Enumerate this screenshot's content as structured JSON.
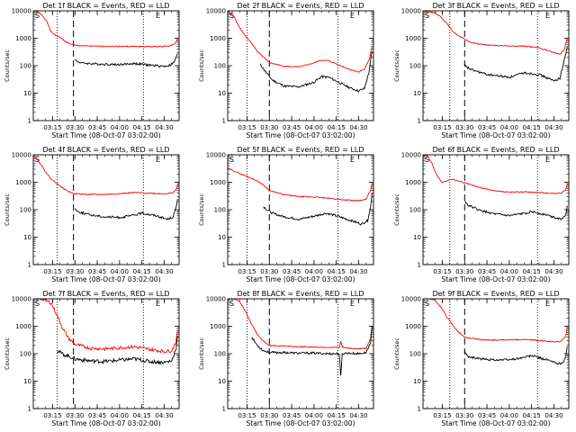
{
  "figure": {
    "xlabel": "Start Time (08-Oct-07 03:02:00)",
    "ylabel": "Counts/sec",
    "colors": {
      "events": "#000000",
      "lld": "#ff0000",
      "background": "#ffffff"
    }
  },
  "chart_data": [
    {
      "type": "line",
      "title": "Det 1f BLACK = Events, RED = LLD",
      "corner_labels": [
        "S",
        "E"
      ],
      "xlabel": "Start Time (08-Oct-07 03:02:00)",
      "ylabel": "Counts/sec",
      "yscale": "log",
      "ylim": [
        1,
        10000
      ],
      "yticks": [
        1,
        10,
        100,
        1000,
        10000
      ],
      "xlim": [
        "03:02",
        "04:40"
      ],
      "xticks": [
        "03:15",
        "03:30",
        "03:45",
        "04:00",
        "04:15",
        "04:30"
      ],
      "markers": {
        "dotted": [
          "03:18",
          "04:16"
        ],
        "dashed": [
          "03:29"
        ]
      },
      "series": [
        {
          "key": "lld",
          "x": [
            "03:02",
            "03:05",
            "03:08",
            "03:11",
            "03:14",
            "03:17",
            "03:20",
            "03:23",
            "03:26",
            "03:29",
            "03:35",
            "03:45",
            "04:00",
            "04:15",
            "04:25",
            "04:33",
            "04:36",
            "04:38",
            "04:39"
          ],
          "values": [
            10000,
            9000,
            7000,
            4200,
            1700,
            1300,
            1050,
            800,
            650,
            560,
            530,
            510,
            510,
            500,
            500,
            520,
            580,
            700,
            1000
          ]
        },
        {
          "key": "events",
          "x": [
            "03:30",
            "03:31",
            "03:35",
            "03:45",
            "04:00",
            "04:10",
            "04:20",
            "04:30",
            "04:34",
            "04:37",
            "04:38",
            "04:39"
          ],
          "values": [
            180,
            145,
            125,
            115,
            110,
            120,
            105,
            95,
            105,
            140,
            210,
            280
          ]
        }
      ]
    },
    {
      "type": "line",
      "title": "Det 2f BLACK = Events, RED = LLD",
      "corner_labels": [
        "S",
        "E"
      ],
      "xlabel": "Start Time (08-Oct-07 03:02:00)",
      "ylabel": "Counts/sec",
      "yscale": "log",
      "ylim": [
        1,
        10000
      ],
      "yticks": [
        1,
        10,
        100,
        1000,
        10000
      ],
      "xlim": [
        "03:02",
        "04:40"
      ],
      "xticks": [
        "03:15",
        "03:30",
        "03:45",
        "04:00",
        "04:15",
        "04:30"
      ],
      "markers": {
        "dotted": [
          "03:15",
          "04:16"
        ],
        "dashed": [
          "03:30"
        ]
      },
      "series": [
        {
          "key": "lld",
          "x": [
            "03:02",
            "03:06",
            "03:10",
            "03:14",
            "03:18",
            "03:22",
            "03:26",
            "03:30",
            "03:40",
            "03:50",
            "04:00",
            "04:05",
            "04:10",
            "04:20",
            "04:25",
            "04:30",
            "04:34",
            "04:37",
            "04:39"
          ],
          "values": [
            10000,
            6500,
            2500,
            1200,
            650,
            330,
            210,
            130,
            95,
            90,
            125,
            160,
            150,
            90,
            70,
            60,
            75,
            160,
            500
          ]
        },
        {
          "key": "events",
          "x": [
            "03:24",
            "03:28",
            "03:32",
            "03:40",
            "03:50",
            "04:00",
            "04:05",
            "04:10",
            "04:20",
            "04:25",
            "04:30",
            "04:34",
            "04:37",
            "04:39"
          ],
          "values": [
            110,
            55,
            30,
            18,
            17,
            25,
            40,
            38,
            20,
            15,
            12,
            15,
            60,
            330
          ]
        }
      ]
    },
    {
      "type": "line",
      "title": "Det 3f BLACK = Events, RED = LLD",
      "corner_labels": [
        "S",
        "E"
      ],
      "xlabel": "Start Time (08-Oct-07 03:02:00)",
      "ylabel": "Counts/sec",
      "yscale": "log",
      "ylim": [
        1,
        10000
      ],
      "yticks": [
        1,
        10,
        100,
        1000,
        10000
      ],
      "xlim": [
        "03:02",
        "04:40"
      ],
      "xticks": [
        "03:15",
        "03:30",
        "03:45",
        "04:00",
        "04:15",
        "04:30"
      ],
      "markers": {
        "dotted": [
          "03:20",
          "04:19"
        ],
        "dashed": [
          "03:30"
        ]
      },
      "series": [
        {
          "key": "lld",
          "x": [
            "03:02",
            "03:06",
            "03:10",
            "03:14",
            "03:18",
            "03:22",
            "03:26",
            "03:29",
            "03:34",
            "03:45",
            "04:00",
            "04:10",
            "04:20",
            "04:30",
            "04:34",
            "04:37",
            "04:39"
          ],
          "values": [
            10000,
            9000,
            8500,
            6000,
            3500,
            1800,
            1200,
            1000,
            700,
            560,
            520,
            520,
            450,
            300,
            260,
            400,
            1000
          ]
        },
        {
          "key": "events",
          "x": [
            "03:30",
            "03:31",
            "03:35",
            "03:45",
            "04:00",
            "04:10",
            "04:20",
            "04:30",
            "04:34",
            "04:37",
            "04:39"
          ],
          "values": [
            110,
            90,
            70,
            48,
            38,
            55,
            48,
            28,
            35,
            160,
            500
          ]
        }
      ]
    },
    {
      "type": "line",
      "title": "Det 4f BLACK = Events, RED = LLD",
      "corner_labels": [
        "S",
        "E"
      ],
      "xlabel": "Start Time (08-Oct-07 03:02:00)",
      "ylabel": "Counts/sec",
      "yscale": "log",
      "ylim": [
        1,
        10000
      ],
      "yticks": [
        1,
        10,
        100,
        1000,
        10000
      ],
      "xlim": [
        "03:02",
        "04:40"
      ],
      "xticks": [
        "03:15",
        "03:30",
        "03:45",
        "04:00",
        "04:15",
        "04:30"
      ],
      "markers": {
        "dotted": [
          "03:18",
          "04:16"
        ],
        "dashed": [
          "03:29"
        ]
      },
      "series": [
        {
          "key": "lld",
          "x": [
            "03:02",
            "03:06",
            "03:10",
            "03:14",
            "03:18",
            "03:22",
            "03:26",
            "03:30",
            "03:40",
            "03:50",
            "04:00",
            "04:10",
            "04:20",
            "04:30",
            "04:35",
            "04:38",
            "04:39"
          ],
          "values": [
            10000,
            5500,
            2500,
            1300,
            900,
            600,
            450,
            380,
            360,
            360,
            380,
            420,
            400,
            380,
            400,
            520,
            800
          ]
        },
        {
          "key": "events",
          "x": [
            "03:30",
            "03:32",
            "03:40",
            "03:50",
            "04:00",
            "04:08",
            "04:15",
            "04:25",
            "04:32",
            "04:36",
            "04:38",
            "04:39"
          ],
          "values": [
            110,
            85,
            65,
            55,
            52,
            60,
            75,
            60,
            45,
            55,
            120,
            250
          ]
        }
      ]
    },
    {
      "type": "line",
      "title": "Det 5f BLACK = Events, RED = LLD",
      "corner_labels": [
        "S",
        "E"
      ],
      "xlabel": "Start Time (08-Oct-07 03:02:00)",
      "ylabel": "Counts/sec",
      "yscale": "log",
      "ylim": [
        1,
        10000
      ],
      "yticks": [
        1,
        10,
        100,
        1000,
        10000
      ],
      "xlim": [
        "03:02",
        "04:40"
      ],
      "xticks": [
        "03:15",
        "03:30",
        "03:45",
        "04:00",
        "04:15",
        "04:30"
      ],
      "markers": {
        "dotted": [
          "03:15",
          "04:16"
        ],
        "dashed": [
          "03:30"
        ]
      },
      "series": [
        {
          "key": "lld",
          "x": [
            "03:02",
            "03:06",
            "03:10",
            "03:14",
            "03:18",
            "03:22",
            "03:26",
            "03:30",
            "03:40",
            "03:50",
            "04:00",
            "04:10",
            "04:20",
            "04:30",
            "04:35",
            "04:38",
            "04:39"
          ],
          "values": [
            3200,
            2600,
            2100,
            1700,
            1400,
            1100,
            800,
            500,
            350,
            300,
            290,
            260,
            230,
            210,
            240,
            500,
            900
          ]
        },
        {
          "key": "events",
          "x": [
            "03:26",
            "03:29",
            "03:32",
            "03:40",
            "03:50",
            "04:00",
            "04:08",
            "04:15",
            "04:25",
            "04:32",
            "04:36",
            "04:38",
            "04:39"
          ],
          "values": [
            130,
            95,
            75,
            55,
            45,
            58,
            75,
            60,
            40,
            30,
            40,
            120,
            400
          ]
        }
      ]
    },
    {
      "type": "line",
      "title": "Det 6f BLACK = Events, RED = LLD",
      "corner_labels": [
        "S",
        "E"
      ],
      "xlabel": "Start Time (08-Oct-07 03:02:00)",
      "ylabel": "Counts/sec",
      "yscale": "log",
      "ylim": [
        1,
        10000
      ],
      "yticks": [
        1,
        10,
        100,
        1000,
        10000
      ],
      "xlim": [
        "03:02",
        "04:40"
      ],
      "xticks": [
        "03:15",
        "03:30",
        "03:45",
        "04:00",
        "04:15",
        "04:30"
      ],
      "markers": {
        "dotted": [
          "03:20",
          "04:19"
        ],
        "dashed": [
          "03:30"
        ]
      },
      "series": [
        {
          "key": "lld",
          "x": [
            "03:02",
            "03:05",
            "03:08",
            "03:10",
            "03:13",
            "03:15",
            "03:18",
            "03:21",
            "03:24",
            "03:27",
            "03:30",
            "03:40",
            "03:50",
            "04:00",
            "04:10",
            "04:20",
            "04:30",
            "04:35",
            "04:38",
            "04:39"
          ],
          "values": [
            10000,
            9000,
            5000,
            2500,
            1300,
            1000,
            1100,
            1300,
            1200,
            1050,
            950,
            650,
            480,
            430,
            450,
            420,
            390,
            400,
            550,
            900
          ]
        },
        {
          "key": "events",
          "x": [
            "03:30",
            "03:32",
            "03:40",
            "03:50",
            "04:00",
            "04:08",
            "04:15",
            "04:25",
            "04:32",
            "04:36",
            "04:38",
            "04:39"
          ],
          "values": [
            210,
            150,
            95,
            70,
            60,
            70,
            85,
            65,
            50,
            45,
            70,
            140
          ]
        }
      ]
    },
    {
      "type": "line",
      "title": "Det 7f BLACK = Events, RED = LLD",
      "corner_labels": [
        "S",
        "E"
      ],
      "xlabel": "Start Time (08-Oct-07 03:02:00)",
      "ylabel": "Counts/sec",
      "yscale": "log",
      "ylim": [
        1,
        10000
      ],
      "yticks": [
        1,
        10,
        100,
        1000,
        10000
      ],
      "xlim": [
        "03:02",
        "04:40"
      ],
      "xticks": [
        "03:15",
        "03:30",
        "03:45",
        "04:00",
        "04:15",
        "04:30"
      ],
      "markers": {
        "dotted": [
          "03:18",
          "04:16"
        ],
        "dashed": [
          "03:29"
        ]
      },
      "series": [
        {
          "key": "lld",
          "x": [
            "03:02",
            "03:08",
            "03:14",
            "03:18",
            "03:22",
            "03:26",
            "03:30",
            "03:40",
            "03:50",
            "04:00",
            "04:10",
            "04:20",
            "04:30",
            "04:35",
            "04:38",
            "04:39"
          ],
          "values": [
            10000,
            10000,
            7000,
            2500,
            800,
            350,
            220,
            160,
            150,
            165,
            180,
            145,
            120,
            130,
            280,
            700
          ]
        },
        {
          "key": "events",
          "x": [
            "03:18",
            "03:22",
            "03:26",
            "03:30",
            "03:40",
            "03:50",
            "04:00",
            "04:10",
            "04:20",
            "04:30",
            "04:35",
            "04:38",
            "04:39"
          ],
          "values": [
            130,
            95,
            80,
            65,
            55,
            52,
            58,
            65,
            52,
            48,
            55,
            160,
            450
          ]
        }
      ]
    },
    {
      "type": "line",
      "title": "Det 8f BLACK = Events, RED = LLD",
      "corner_labels": [
        "S",
        "E"
      ],
      "xlabel": "Start Time (08-Oct-07 03:02:00)",
      "ylabel": "Counts/sec",
      "yscale": "log",
      "ylim": [
        1,
        10000
      ],
      "yticks": [
        1,
        10,
        100,
        1000,
        10000
      ],
      "xlim": [
        "03:02",
        "04:40"
      ],
      "xticks": [
        "03:15",
        "03:30",
        "03:45",
        "04:00",
        "04:15",
        "04:30"
      ],
      "markers": {
        "dotted": [
          "03:15",
          "04:16"
        ],
        "dashed": [
          "03:30"
        ]
      },
      "series": [
        {
          "key": "lld",
          "x": [
            "03:02",
            "03:06",
            "03:10",
            "03:14",
            "03:18",
            "03:22",
            "03:26",
            "03:30",
            "03:40",
            "03:50",
            "04:00",
            "04:10",
            "04:17",
            "04:18",
            "04:19",
            "04:22",
            "04:30",
            "04:35",
            "04:38",
            "04:39"
          ],
          "values": [
            10000,
            10000,
            8000,
            3500,
            1200,
            500,
            280,
            200,
            190,
            180,
            175,
            170,
            165,
            280,
            175,
            160,
            150,
            160,
            350,
            1000
          ]
        },
        {
          "key": "events",
          "x": [
            "03:18",
            "03:22",
            "03:26",
            "03:30",
            "03:40",
            "03:50",
            "04:00",
            "04:10",
            "04:17",
            "04:18",
            "04:19",
            "04:22",
            "04:30",
            "04:35",
            "04:38",
            "04:39"
          ],
          "values": [
            400,
            200,
            130,
            110,
            110,
            105,
            105,
            100,
            100,
            15,
            100,
            105,
            100,
            110,
            250,
            1000
          ]
        }
      ]
    },
    {
      "type": "line",
      "title": "Det 9f BLACK = Events, RED = LLD",
      "corner_labels": [
        "S",
        "E"
      ],
      "xlabel": "Start Time (08-Oct-07 03:02:00)",
      "ylabel": "Counts/sec",
      "yscale": "log",
      "ylim": [
        1,
        10000
      ],
      "yticks": [
        1,
        10,
        100,
        1000,
        10000
      ],
      "xlim": [
        "03:02",
        "04:40"
      ],
      "xticks": [
        "03:15",
        "03:30",
        "03:45",
        "04:00",
        "04:15",
        "04:30"
      ],
      "markers": {
        "dotted": [
          "03:20",
          "04:19"
        ],
        "dashed": [
          "03:30"
        ]
      },
      "series": [
        {
          "key": "lld",
          "x": [
            "03:02",
            "03:06",
            "03:10",
            "03:14",
            "03:18",
            "03:22",
            "03:26",
            "03:30",
            "03:40",
            "03:50",
            "04:00",
            "04:10",
            "04:20",
            "04:30",
            "04:35",
            "04:38",
            "04:39"
          ],
          "values": [
            10000,
            10000,
            9000,
            5000,
            2200,
            1100,
            600,
            400,
            330,
            310,
            320,
            330,
            300,
            270,
            280,
            450,
            1000
          ]
        },
        {
          "key": "events",
          "x": [
            "03:30",
            "03:32",
            "03:40",
            "03:50",
            "04:00",
            "04:08",
            "04:15",
            "04:25",
            "04:32",
            "04:36",
            "04:38",
            "04:39"
          ],
          "values": [
            120,
            80,
            65,
            60,
            60,
            70,
            85,
            60,
            45,
            45,
            80,
            180
          ]
        }
      ]
    }
  ]
}
